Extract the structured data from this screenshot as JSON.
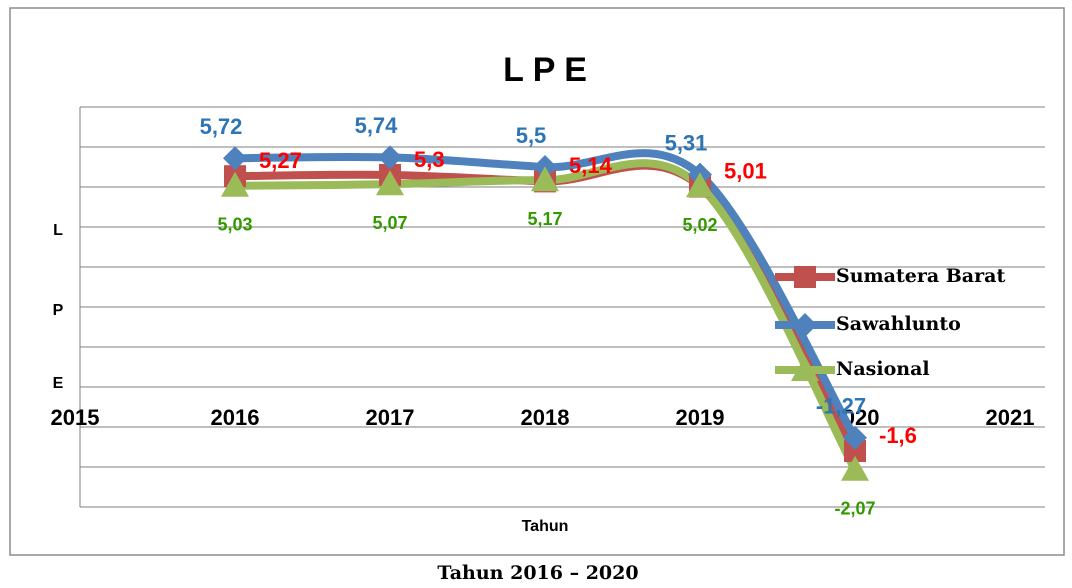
{
  "chart_data": {
    "type": "line",
    "title": "L P E",
    "y_axis_labels": [
      "L",
      "P",
      "E"
    ],
    "xlabel": "Tahun",
    "caption": "Tahun 2016 – 2020",
    "x": [
      2016,
      2017,
      2018,
      2019,
      2020
    ],
    "xlim": [
      2015,
      2021
    ],
    "xticks": [
      2015,
      2016,
      2017,
      2018,
      2019,
      2020,
      2021
    ],
    "ylim": [
      -3,
      7
    ],
    "yticks": [
      -3,
      -2,
      -1,
      0,
      1,
      2,
      3,
      4,
      5,
      6,
      7
    ],
    "grid": true,
    "legend": "right",
    "series": [
      {
        "name": "Sumatera Barat",
        "color": "#c0504d",
        "label_color": "#ff0000",
        "marker": "square",
        "values": [
          5.27,
          5.3,
          5.14,
          5.01,
          -1.6
        ],
        "value_labels": [
          "5,27",
          "5,3",
          "5,14",
          "5,01",
          "-1,6"
        ]
      },
      {
        "name": "Sawahlunto",
        "color": "#4f81bd",
        "label_color": "#2e75b6",
        "marker": "diamond",
        "values": [
          5.72,
          5.74,
          5.5,
          5.31,
          -1.27
        ],
        "value_labels": [
          "5,72",
          "5,74",
          "5,5",
          "5,31",
          "-1,27"
        ]
      },
      {
        "name": "Nasional",
        "color": "#9bbb59",
        "label_color": "#339900",
        "marker": "triangle",
        "values": [
          5.03,
          5.07,
          5.17,
          5.02,
          -2.07
        ],
        "value_labels": [
          "5,03",
          "5,07",
          "5,17",
          "5,02",
          "-2,07"
        ]
      }
    ]
  }
}
